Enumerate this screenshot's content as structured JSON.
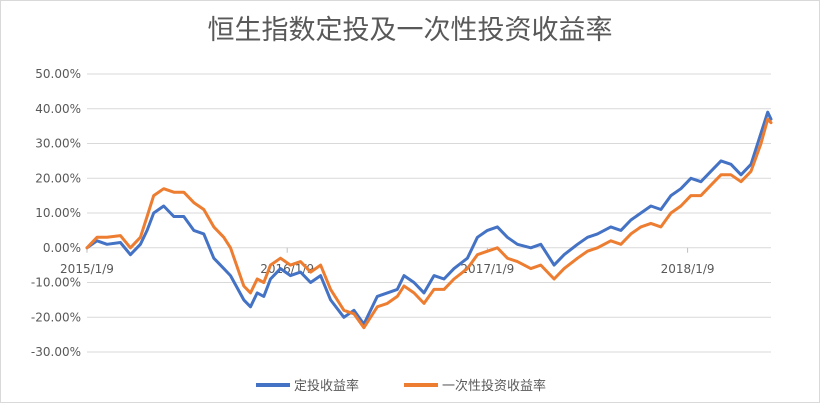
{
  "chart_data": {
    "type": "line",
    "title": "恒生指数定投及一次性投资收益率",
    "xlabel": "",
    "ylabel": "",
    "ylim": [
      -30,
      50
    ],
    "y_ticks": [
      50,
      40,
      30,
      20,
      10,
      0,
      -10,
      -20,
      -30
    ],
    "y_tick_labels": [
      "50.00%",
      "40.00%",
      "30.00%",
      "20.00%",
      "10.00%",
      "0.00%",
      "-10.00%",
      "-20.00%",
      "-30.00%"
    ],
    "x_range_months": [
      0,
      37.5
    ],
    "x_ticks": [
      {
        "label": "2015/1/9",
        "m": 0
      },
      {
        "label": "2016/1/9",
        "m": 12
      },
      {
        "label": "2017/1/9",
        "m": 24
      },
      {
        "label": "2018/1/9",
        "m": 36
      }
    ],
    "gridlines": true,
    "legend_position": "bottom",
    "series": [
      {
        "name": "定投收益率",
        "color": "#4472C4",
        "points": [
          [
            0,
            0
          ],
          [
            0.6,
            2
          ],
          [
            1.2,
            1
          ],
          [
            2,
            1.5
          ],
          [
            2.6,
            -2
          ],
          [
            3.2,
            1
          ],
          [
            3.6,
            5
          ],
          [
            4,
            10
          ],
          [
            4.6,
            12
          ],
          [
            5.2,
            9
          ],
          [
            5.8,
            9
          ],
          [
            6.4,
            5
          ],
          [
            7,
            4
          ],
          [
            7.6,
            -3
          ],
          [
            8.2,
            -6
          ],
          [
            8.6,
            -8
          ],
          [
            9.4,
            -15
          ],
          [
            9.8,
            -17
          ],
          [
            10.2,
            -13
          ],
          [
            10.6,
            -14
          ],
          [
            11,
            -9
          ],
          [
            11.6,
            -6
          ],
          [
            12.2,
            -8
          ],
          [
            12.8,
            -7
          ],
          [
            13.4,
            -10
          ],
          [
            14,
            -8
          ],
          [
            14.6,
            -15
          ],
          [
            15.4,
            -20
          ],
          [
            16,
            -18
          ],
          [
            16.6,
            -22
          ],
          [
            17.4,
            -14
          ],
          [
            18,
            -13
          ],
          [
            18.6,
            -12
          ],
          [
            19,
            -8
          ],
          [
            19.6,
            -10
          ],
          [
            20.2,
            -13
          ],
          [
            20.8,
            -8
          ],
          [
            21.4,
            -9
          ],
          [
            22,
            -6
          ],
          [
            22.8,
            -3
          ],
          [
            23.4,
            3
          ],
          [
            24,
            5
          ],
          [
            24.6,
            6
          ],
          [
            25.2,
            3
          ],
          [
            25.8,
            1
          ],
          [
            26.6,
            0
          ],
          [
            27.2,
            1
          ],
          [
            28,
            -5
          ],
          [
            28.6,
            -2
          ],
          [
            29.4,
            1
          ],
          [
            30,
            3
          ],
          [
            30.6,
            4
          ],
          [
            31.4,
            6
          ],
          [
            32,
            5
          ],
          [
            32.6,
            8
          ],
          [
            33.2,
            10
          ],
          [
            33.8,
            12
          ],
          [
            34.4,
            11
          ],
          [
            35,
            15
          ],
          [
            35.6,
            17
          ],
          [
            36.2,
            20
          ],
          [
            36.8,
            19
          ],
          [
            37.4,
            22
          ],
          [
            38,
            25
          ],
          [
            38.6,
            24
          ],
          [
            39.2,
            21
          ],
          [
            39.8,
            24
          ],
          [
            40.4,
            33
          ],
          [
            40.8,
            39
          ],
          [
            41,
            37
          ]
        ]
      },
      {
        "name": "一次性投资收益率",
        "color": "#ED7D31",
        "points": [
          [
            0,
            0
          ],
          [
            0.6,
            3
          ],
          [
            1.2,
            3
          ],
          [
            2,
            3.5
          ],
          [
            2.6,
            0
          ],
          [
            3.2,
            3
          ],
          [
            3.6,
            9
          ],
          [
            4,
            15
          ],
          [
            4.6,
            17
          ],
          [
            5.2,
            16
          ],
          [
            5.8,
            16
          ],
          [
            6.4,
            13
          ],
          [
            7,
            11
          ],
          [
            7.6,
            6
          ],
          [
            8.2,
            3
          ],
          [
            8.6,
            0
          ],
          [
            9.4,
            -11
          ],
          [
            9.8,
            -13
          ],
          [
            10.2,
            -9
          ],
          [
            10.6,
            -10
          ],
          [
            11,
            -5
          ],
          [
            11.6,
            -3
          ],
          [
            12.2,
            -5
          ],
          [
            12.8,
            -4
          ],
          [
            13.4,
            -7
          ],
          [
            14,
            -5
          ],
          [
            14.6,
            -12
          ],
          [
            15.4,
            -18
          ],
          [
            16,
            -19
          ],
          [
            16.6,
            -23
          ],
          [
            17.4,
            -17
          ],
          [
            18,
            -16
          ],
          [
            18.6,
            -14
          ],
          [
            19,
            -11
          ],
          [
            19.6,
            -13
          ],
          [
            20.2,
            -16
          ],
          [
            20.8,
            -12
          ],
          [
            21.4,
            -12
          ],
          [
            22,
            -9
          ],
          [
            22.8,
            -6
          ],
          [
            23.4,
            -2
          ],
          [
            24,
            -1
          ],
          [
            24.6,
            0
          ],
          [
            25.2,
            -3
          ],
          [
            25.8,
            -4
          ],
          [
            26.6,
            -6
          ],
          [
            27.2,
            -5
          ],
          [
            28,
            -9
          ],
          [
            28.6,
            -6
          ],
          [
            29.4,
            -3
          ],
          [
            30,
            -1
          ],
          [
            30.6,
            0
          ],
          [
            31.4,
            2
          ],
          [
            32,
            1
          ],
          [
            32.6,
            4
          ],
          [
            33.2,
            6
          ],
          [
            33.8,
            7
          ],
          [
            34.4,
            6
          ],
          [
            35,
            10
          ],
          [
            35.6,
            12
          ],
          [
            36.2,
            15
          ],
          [
            36.8,
            15
          ],
          [
            37.4,
            18
          ],
          [
            38,
            21
          ],
          [
            38.6,
            21
          ],
          [
            39.2,
            19
          ],
          [
            39.8,
            22
          ],
          [
            40.4,
            30
          ],
          [
            40.8,
            37
          ],
          [
            41,
            36
          ]
        ]
      }
    ]
  }
}
